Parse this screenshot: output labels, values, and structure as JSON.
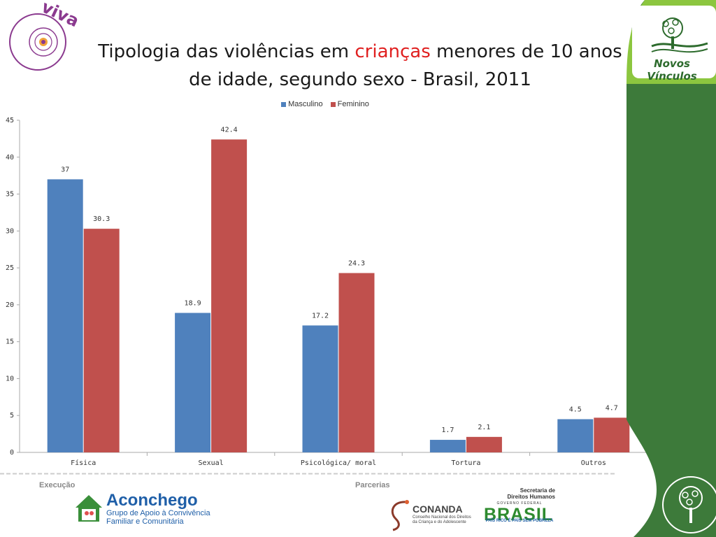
{
  "header": {
    "title_part1": "Tipologia das violências em ",
    "title_highlight": "crianças",
    "title_part2": " menores de 10 anos",
    "title_line2": "de idade, segundo sexo - Brasil, 2011"
  },
  "logos": {
    "viva": "viva",
    "novos_vinculos": "Novos Vínculos",
    "aconchego_name": "Aconchego",
    "aconchego_sub_line1": "Grupo de Apoio à Convivência",
    "aconchego_sub_line2": "Familiar e Comunitária",
    "conanda_name": "CONANDA",
    "conanda_sub": "Conselho Nacional dos Direitos da Criança e do Adolescente",
    "sdh_line1": "Secretaria de",
    "sdh_line2": "Direitos Humanos",
    "gov_federal": "GOVERNO FEDERAL",
    "brasil": "BRASIL",
    "brasil_sub": "PAÍS RICO É PAÍS SEM POBREZA"
  },
  "footer": {
    "execucao": "Execução",
    "parcerias": "Parcerias"
  },
  "colors": {
    "masculino": "#4f81bd",
    "feminino": "#c0504d",
    "green_dark": "#3d7a3a",
    "green_light": "#8cc63f",
    "viva_purple": "#8b3a8f"
  },
  "chart_data": {
    "type": "bar",
    "categories": [
      "Física",
      "Sexual",
      "Psicológica/ moral",
      "Tortura",
      "Outros"
    ],
    "series": [
      {
        "name": "Masculino",
        "values": [
          37,
          18.9,
          17.2,
          1.7,
          4.5
        ],
        "labels": [
          "37",
          "18.9",
          "17.2",
          "1.7",
          "4.5"
        ]
      },
      {
        "name": "Feminino",
        "values": [
          30.3,
          42.4,
          24.3,
          2.1,
          4.7
        ],
        "labels": [
          "30.3",
          "42.4",
          "24.3",
          "2.1",
          "4.7"
        ]
      }
    ],
    "yticks": [
      "0",
      "5",
      "10",
      "15",
      "20",
      "25",
      "30",
      "35",
      "40",
      "45"
    ],
    "ylim": [
      0,
      45
    ],
    "legend_position": "top-center",
    "grid": false
  }
}
